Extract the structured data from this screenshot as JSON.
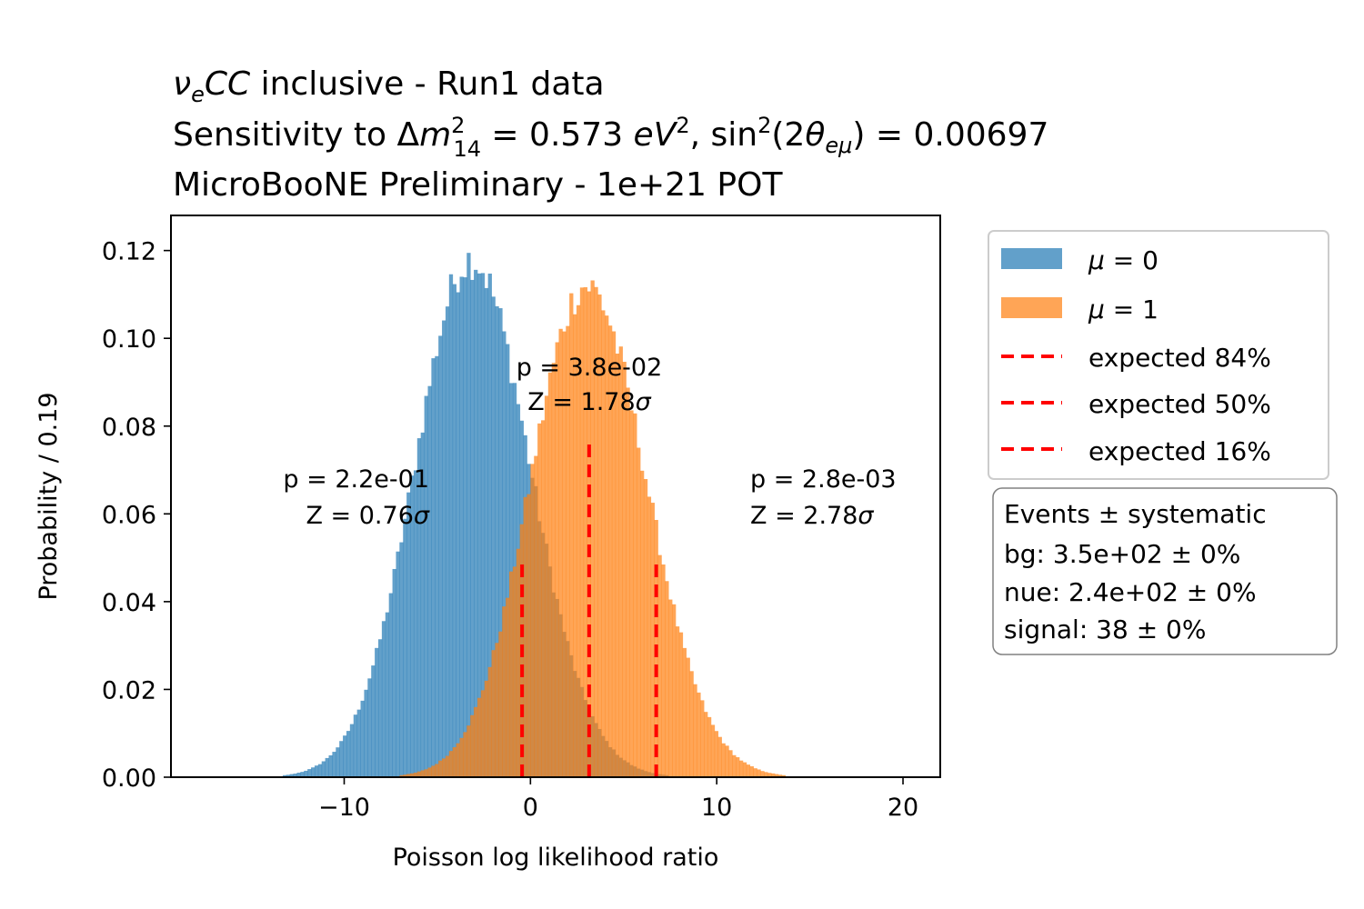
{
  "chart_data": {
    "type": "histogram",
    "title_lines": [
      "νₑCC inclusive - Run1 data",
      "Sensitivity to Δm²₁₄ = 0.573 eV², sin²(2θₑμ) = 0.00697",
      "MicroBooNE Preliminary - 1e+21 POT"
    ],
    "xlabel": "Poisson log likelihood ratio",
    "ylabel": "Probability / 0.19",
    "xlim": [
      -19.3,
      22.0
    ],
    "ylim": [
      0,
      0.128
    ],
    "xticks": [
      -10,
      0,
      10,
      20
    ],
    "xtick_labels": [
      "−10",
      "0",
      "10",
      "20"
    ],
    "yticks": [
      0,
      0.02,
      0.04,
      0.06,
      0.08,
      0.1,
      0.12
    ],
    "ytick_labels": [
      "0.00",
      "0.02",
      "0.04",
      "0.06",
      "0.08",
      "0.10",
      "0.12"
    ],
    "bin_width": 0.19,
    "series": [
      {
        "name": "μ = 0",
        "color": "#1f77b4",
        "alpha": 0.7,
        "peak_x": -3.2,
        "peak_y": 0.118,
        "sigma_left": 3.0,
        "sigma_right": 3.15,
        "x_range": [
          -15.2,
          9.5
        ]
      },
      {
        "name": "μ = 1",
        "color": "#ff7f0e",
        "alpha": 0.7,
        "peak_x": 3.0,
        "peak_y": 0.112,
        "sigma_left": 3.0,
        "sigma_right": 3.2,
        "x_range": [
          -9.5,
          16.0
        ]
      }
    ],
    "expected_lines": [
      {
        "label": "expected 84%",
        "x": -0.45,
        "y_top": 0.05,
        "color": "#ff0000"
      },
      {
        "label": "expected 50%",
        "x": 3.15,
        "y_top": 0.077,
        "color": "#ff0000"
      },
      {
        "label": "expected 16%",
        "x": 6.75,
        "y_top": 0.05,
        "color": "#ff0000"
      }
    ],
    "annotations": [
      {
        "name": "left",
        "lines": [
          "p = 2.2e-01",
          "Z = 0.76σ"
        ],
        "anchor": "end"
      },
      {
        "name": "middle",
        "lines": [
          "p = 3.8e-02",
          "Z = 1.78σ"
        ],
        "anchor": "middle"
      },
      {
        "name": "right",
        "lines": [
          "p = 2.8e-03",
          "Z = 2.78σ"
        ],
        "anchor": "start"
      }
    ],
    "legend": {
      "placement": "outside-right",
      "entries": [
        "μ = 0",
        "μ = 1",
        "expected 84%",
        "expected 50%",
        "expected 16%"
      ]
    },
    "info_box": {
      "lines": [
        "Events ± systematic",
        "bg: 3.5e+02 ± 0%",
        "nue: 2.4e+02 ± 0%",
        "signal: 38 ± 0%"
      ]
    }
  }
}
